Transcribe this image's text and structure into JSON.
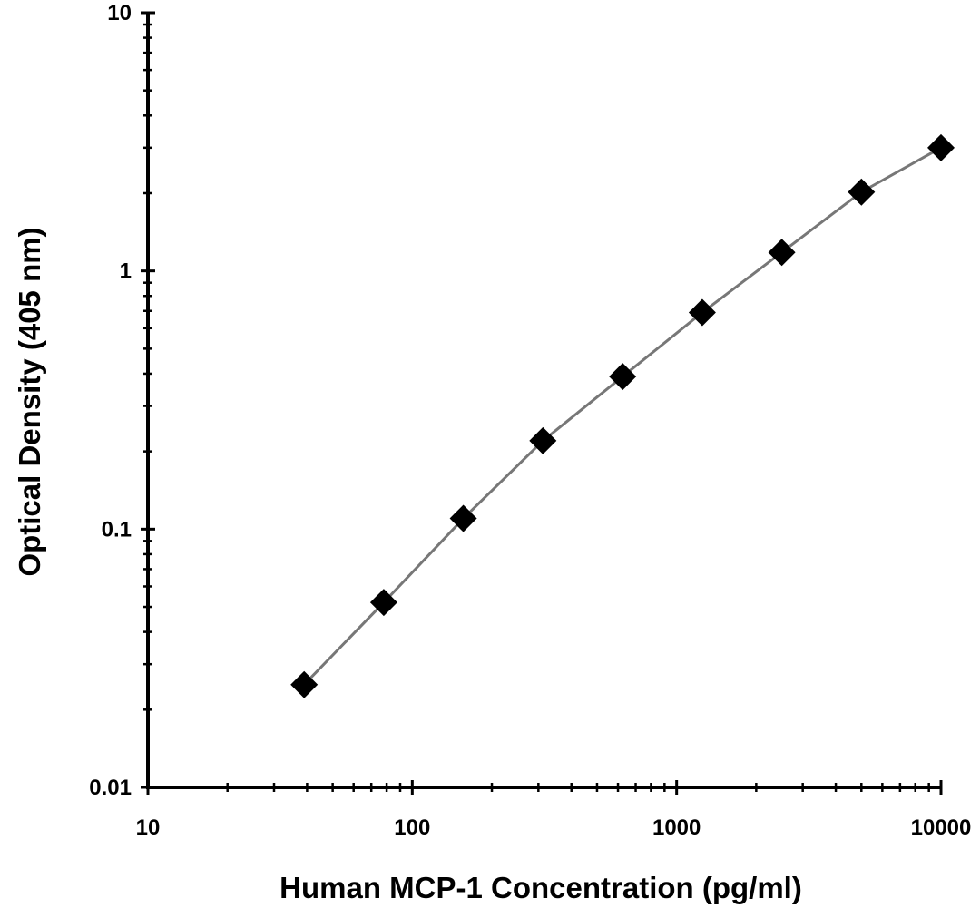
{
  "chart_data": {
    "type": "scatter",
    "title": "",
    "xlabel": "Human MCP-1 Concentration (pg/ml)",
    "ylabel": "Optical Density (405 nm)",
    "x_scale": "log",
    "y_scale": "log",
    "xlim": [
      10,
      10000
    ],
    "ylim": [
      0.01,
      10
    ],
    "x_ticks": [
      10,
      100,
      1000,
      10000
    ],
    "x_tick_labels": [
      "10",
      "100",
      "1000",
      "10000"
    ],
    "y_ticks": [
      0.01,
      0.1,
      1,
      10
    ],
    "y_tick_labels": [
      "0.01",
      "0.1",
      "1",
      "10"
    ],
    "grid": false,
    "legend": "none",
    "series": [
      {
        "marker": "diamond",
        "line": "connected",
        "color": "#000000",
        "line_color": "#777777",
        "x": [
          39,
          78,
          156,
          312,
          625,
          1250,
          2500,
          5000,
          10000
        ],
        "y": [
          0.025,
          0.052,
          0.11,
          0.22,
          0.39,
          0.69,
          1.18,
          2.02,
          3.0
        ]
      }
    ]
  }
}
